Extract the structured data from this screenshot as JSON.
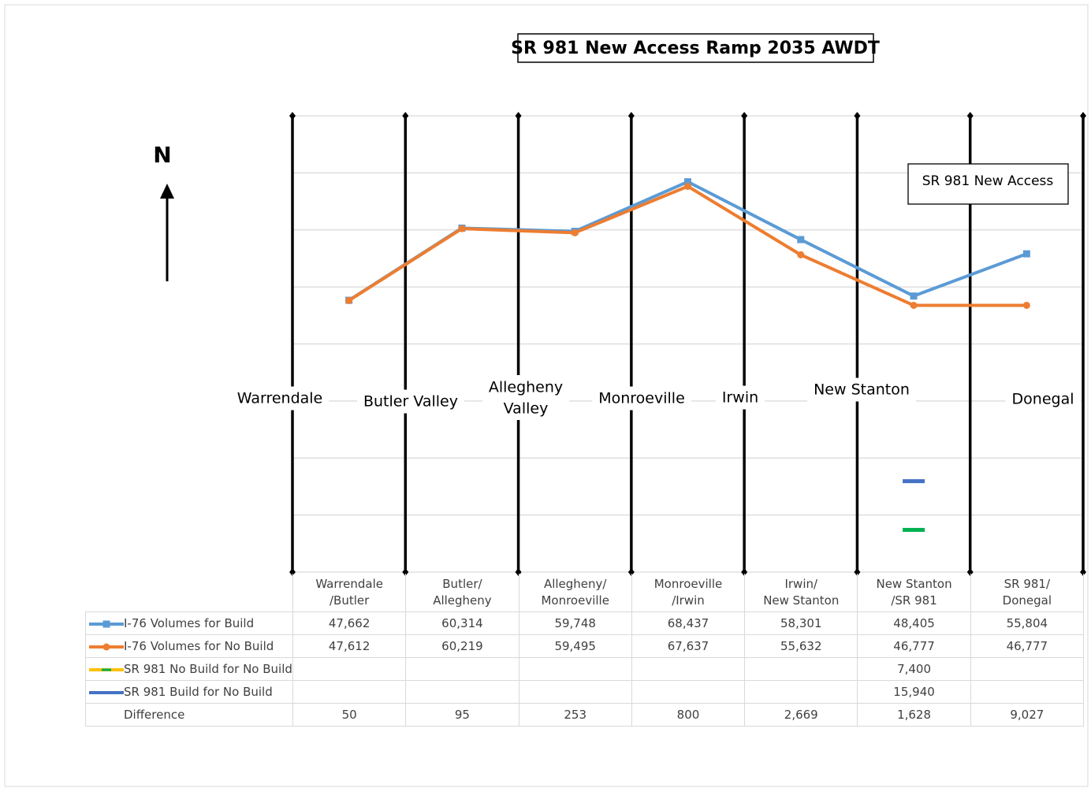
{
  "chart_data": {
    "type": "line",
    "title": "SR 981 New Access Ramp 2035 AWDT",
    "north_label": "N",
    "callout": "SR 981 New Access",
    "interchanges": [
      "Warrendale",
      "Butler Valley",
      "Allegheny\nValley",
      "Monroeville",
      "Irwin",
      "New Stanton",
      "Donegal"
    ],
    "categories": [
      "Warrendale\n/Butler",
      "Butler/\nAllegheny",
      "Allegheny/\nMonroeville",
      "Monroeville\n/Irwin",
      "Irwin/\nNew Stanton",
      "New Stanton\n/SR 981",
      "SR 981/\nDonegal"
    ],
    "ylim": [
      0,
      80000
    ],
    "yticks": [
      0,
      10000,
      20000,
      30000,
      40000,
      50000,
      60000,
      70000,
      80000
    ],
    "grid": true,
    "series": [
      {
        "name": "I-76 Volumes for Build",
        "color": "#5b9bd5",
        "marker": "square",
        "values": [
          47662,
          60314,
          59748,
          68437,
          58301,
          48405,
          55804
        ],
        "value_labels": [
          "47,662",
          "60,314",
          "59,748",
          "68,437",
          "58,301",
          "48,405",
          "55,804"
        ]
      },
      {
        "name": "I-76 Volumes for No Build",
        "color": "#ed7d31",
        "marker": "circle",
        "values": [
          47612,
          60219,
          59495,
          67637,
          55632,
          46777,
          46777
        ],
        "value_labels": [
          "47,612",
          "60,219",
          "59,495",
          "67,637",
          "55,632",
          "46,777",
          "46,777"
        ]
      },
      {
        "name": "SR 981 No Build for No Build",
        "color": "#ffc000",
        "marker": "dash",
        "marker_color": "#00b050",
        "values": [
          null,
          null,
          null,
          null,
          null,
          7400,
          null
        ],
        "value_labels": [
          null,
          null,
          null,
          null,
          null,
          "7,400",
          null
        ]
      },
      {
        "name": "SR 981 Build for No Build",
        "color": "#4472c4",
        "marker": "dash",
        "marker_color": "#4472c4",
        "values": [
          null,
          null,
          null,
          null,
          null,
          15940,
          null
        ],
        "value_labels": [
          null,
          null,
          null,
          null,
          null,
          "15,940",
          null
        ]
      }
    ],
    "difference": {
      "name": "Difference",
      "values": [
        50,
        95,
        253,
        800,
        2669,
        1628,
        9027
      ],
      "value_labels": [
        "50",
        "95",
        "253",
        "800",
        "2,669",
        "1,628",
        "9,027"
      ]
    }
  }
}
